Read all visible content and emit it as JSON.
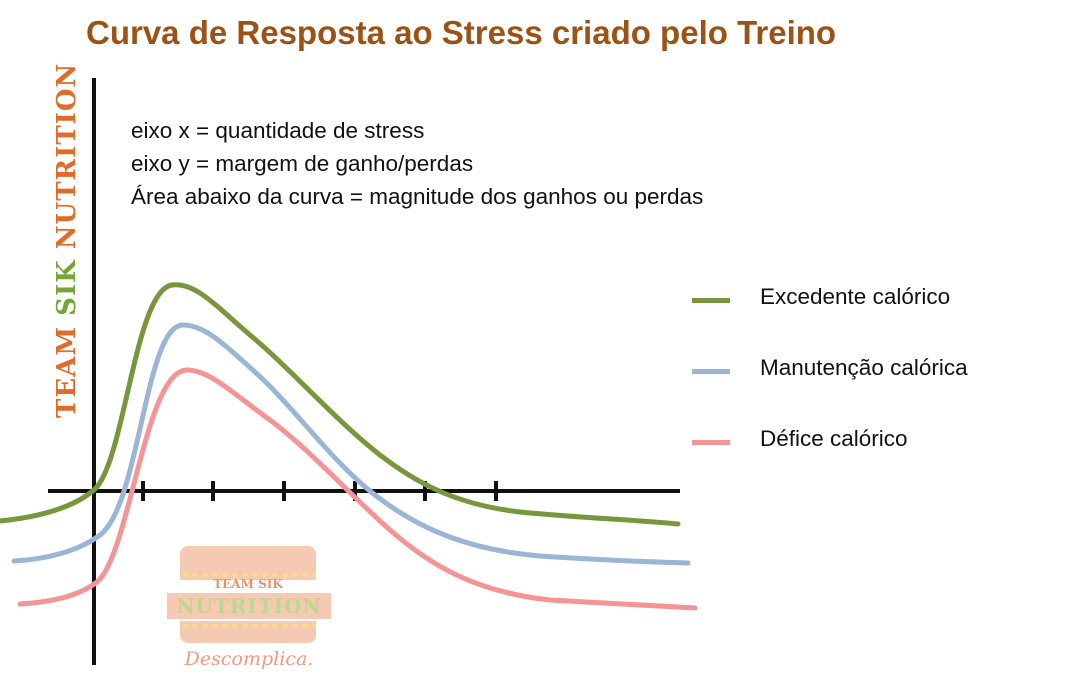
{
  "title": "Curva de Resposta ao Stress criado pelo Treino",
  "side_brand": {
    "part1": "TEAM ",
    "part2": "SIK ",
    "part3": "NUTRITION",
    "color_team": "#e06c2a",
    "color_sik": "#76a536",
    "color_nutrition": "#e06c2a"
  },
  "notes": [
    "eixo x = quantidade de stress",
    "eixo y = margem de ganho/perdas",
    "Área abaixo da curva = magnitude dos ganhos ou perdas"
  ],
  "legend": [
    {
      "label": "Excedente calórico",
      "color": "#78963c"
    },
    {
      "label": "Manutenção calórica",
      "color": "#9ab5d6"
    },
    {
      "label": "Défice calórico",
      "color": "#f59395"
    }
  ],
  "logo": {
    "line1": "TEAM SIK",
    "line2": "NUTRITION",
    "tagline": "Descomplica."
  },
  "colors": {
    "title": "#9b5214",
    "axis": "#111111"
  }
}
